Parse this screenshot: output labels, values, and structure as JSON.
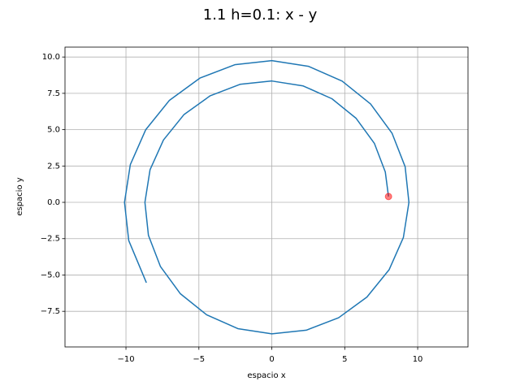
{
  "chart_data": {
    "type": "line",
    "title": "1.1 h=0.1: x - y",
    "xlabel": "espacio x",
    "ylabel": "espacio y",
    "x": [
      8.0,
      7.78,
      7.03,
      5.78,
      4.12,
      2.15,
      0.0,
      -2.18,
      -4.23,
      -6.03,
      -7.43,
      -8.35,
      -8.7,
      -8.46,
      -7.64,
      -6.28,
      -4.47,
      -2.33,
      0.0,
      2.36,
      4.58,
      6.52,
      8.04,
      9.02,
      9.4,
      9.14,
      8.24,
      6.77,
      4.82,
      2.51,
      0.0,
      -2.54,
      -4.93,
      -7.02,
      -8.65,
      -9.7,
      -10.1,
      -9.81,
      -8.6
    ],
    "y": [
      0.4,
      2.09,
      4.06,
      5.78,
      7.13,
      8.01,
      8.35,
      8.12,
      7.33,
      6.03,
      4.29,
      2.24,
      0.0,
      -2.27,
      -4.41,
      -6.28,
      -7.74,
      -8.69,
      -9.05,
      -8.8,
      -7.94,
      -6.52,
      -4.64,
      -2.42,
      0.0,
      2.45,
      4.76,
      6.77,
      8.34,
      9.36,
      9.75,
      9.47,
      8.55,
      7.02,
      4.99,
      2.6,
      0.0,
      -2.63,
      -5.53
    ],
    "color": "#1f77b4",
    "marker": {
      "x": 8.0,
      "y": 0.4,
      "color": "#ff0000"
    },
    "xlim": [
      -14.18,
      13.45
    ],
    "ylim": [
      -9.95,
      10.68
    ],
    "xticks": [
      {
        "value": -10,
        "label": "−10"
      },
      {
        "value": -5,
        "label": "−5"
      },
      0,
      5,
      10
    ],
    "yticks": [
      {
        "value": -7.5,
        "label": "−7.5"
      },
      {
        "value": -5,
        "label": "−5.0"
      },
      {
        "value": -2.5,
        "label": "−2.5"
      },
      {
        "value": 0,
        "label": "0.0"
      },
      {
        "value": 2.5,
        "label": "2.5"
      },
      {
        "value": 5,
        "label": "5.0"
      },
      {
        "value": 7.5,
        "label": "7.5"
      },
      {
        "value": 10,
        "label": "10.0"
      }
    ],
    "grid": true
  }
}
